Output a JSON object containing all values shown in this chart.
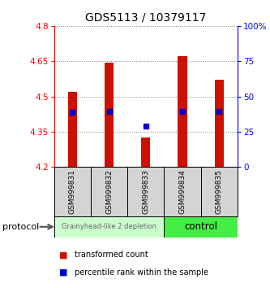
{
  "title": "GDS5113 / 10379117",
  "samples": [
    "GSM999831",
    "GSM999832",
    "GSM999833",
    "GSM999834",
    "GSM999835"
  ],
  "bar_bottoms": [
    4.2,
    4.2,
    4.2,
    4.2,
    4.2
  ],
  "bar_tops": [
    4.52,
    4.645,
    4.325,
    4.67,
    4.57
  ],
  "percentile_values": [
    4.432,
    4.437,
    4.375,
    4.435,
    4.437
  ],
  "ylim_left": [
    4.2,
    4.8
  ],
  "ylim_right": [
    0,
    100
  ],
  "yticks_left": [
    4.2,
    4.35,
    4.5,
    4.65,
    4.8
  ],
  "ytick_labels_left": [
    "4.2",
    "4.35",
    "4.5",
    "4.65",
    "4.8"
  ],
  "yticks_right": [
    0,
    25,
    50,
    75,
    100
  ],
  "ytick_labels_right": [
    "0",
    "25",
    "50",
    "75",
    "100%"
  ],
  "bar_color": "#cc1100",
  "percentile_color": "#0000cc",
  "group1_color": "#ccffcc",
  "group2_color": "#44ee44",
  "group1_label": "Grainyhead-like 2 depletion",
  "group2_label": "control",
  "protocol_label": "protocol",
  "legend_red": "transformed count",
  "legend_blue": "percentile rank within the sample",
  "bar_width": 0.25
}
